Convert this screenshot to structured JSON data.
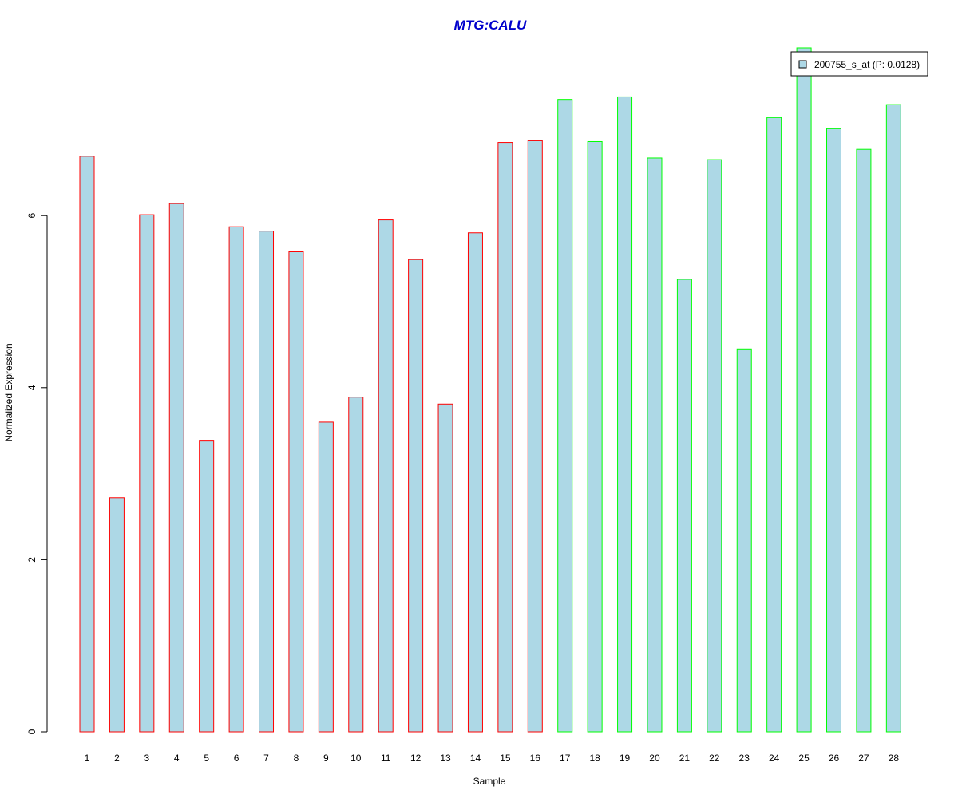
{
  "chart_data": {
    "type": "bar",
    "title": "MTG:CALU",
    "xlabel": "Sample",
    "ylabel": "Normalized Expression",
    "categories": [
      "1",
      "2",
      "3",
      "4",
      "5",
      "6",
      "7",
      "8",
      "9",
      "10",
      "11",
      "12",
      "13",
      "14",
      "15",
      "16",
      "17",
      "18",
      "19",
      "20",
      "21",
      "22",
      "23",
      "24",
      "25",
      "26",
      "27",
      "28"
    ],
    "series": [
      {
        "name": "200755_s_at (P: 0.0128)",
        "values": [
          6.69,
          2.72,
          6.01,
          6.14,
          3.38,
          5.87,
          5.82,
          5.58,
          3.6,
          3.89,
          5.95,
          5.49,
          3.81,
          5.8,
          6.85,
          6.87,
          7.35,
          6.86,
          7.38,
          6.67,
          5.26,
          6.65,
          4.45,
          7.14,
          7.95,
          7.01,
          6.77,
          7.29
        ]
      }
    ],
    "ylim": [
      0,
      7.95
    ],
    "yticks": [
      "0",
      "2",
      "4",
      "6"
    ],
    "legend_position": "top-right",
    "colors": {
      "title": "#0000cc",
      "bar_fill": "#add8e6",
      "group1_border": "#ff0000",
      "group2_border": "#00ff00",
      "axis": "#000000"
    },
    "group1_count": 16,
    "grid": false
  }
}
